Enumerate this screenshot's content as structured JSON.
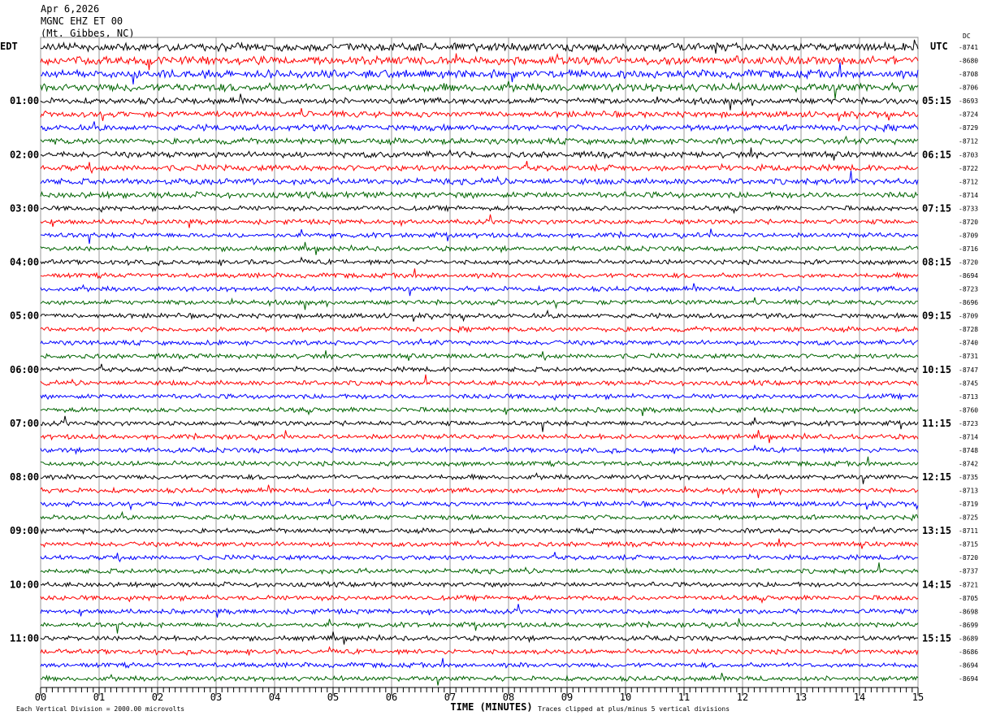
{
  "header": {
    "date": "Apr 6,2026",
    "station": "MGNC EHZ ET 00",
    "location": "(Mt. Gibbes, NC)"
  },
  "chart_data": {
    "type": "line",
    "subtype": "helicorder",
    "left_timezone": "EDT",
    "right_timezone": "UTC",
    "dc_header": "DC",
    "xlabel": "TIME (MINUTES)",
    "x_ticks": [
      "00",
      "01",
      "02",
      "03",
      "04",
      "05",
      "06",
      "07",
      "08",
      "09",
      "10",
      "11",
      "12",
      "13",
      "14",
      "15"
    ],
    "xlim": [
      0,
      15
    ],
    "left_hour_labels": [
      "",
      "01:00",
      "02:00",
      "03:00",
      "04:00",
      "05:00",
      "06:00",
      "07:00",
      "08:00",
      "09:00",
      "10:00",
      "11:00"
    ],
    "right_hour_labels": [
      "",
      "05:15",
      "06:15",
      "07:15",
      "08:15",
      "09:15",
      "10:15",
      "11:15",
      "12:15",
      "13:15",
      "14:15",
      "15:15"
    ],
    "dc_offsets": [
      -8741,
      -8680,
      -8708,
      -8706,
      -8693,
      -8724,
      -8729,
      -8712,
      -8703,
      -8722,
      -8712,
      -8714,
      -8733,
      -8720,
      -8709,
      -8716,
      -8720,
      -8694,
      -8723,
      -8696,
      -8709,
      -8728,
      -8740,
      -8731,
      -8747,
      -8745,
      -8713,
      -8760,
      -8723,
      -8714,
      -8748,
      -8742,
      -8735,
      -8713,
      -8719,
      -8725,
      -8711,
      -8715,
      -8720,
      -8737,
      -8721,
      -8705,
      -8698,
      -8699,
      -8689,
      -8686,
      -8694,
      -8694
    ],
    "trace_colors": [
      "#000000",
      "#ff0000",
      "#0000ff",
      "#006400"
    ],
    "grid": true,
    "scale_note": "Each Vertical Division = 2000.00 microvolts",
    "clip_note": "Traces clipped at plus/minus 5 vertical divisions"
  }
}
